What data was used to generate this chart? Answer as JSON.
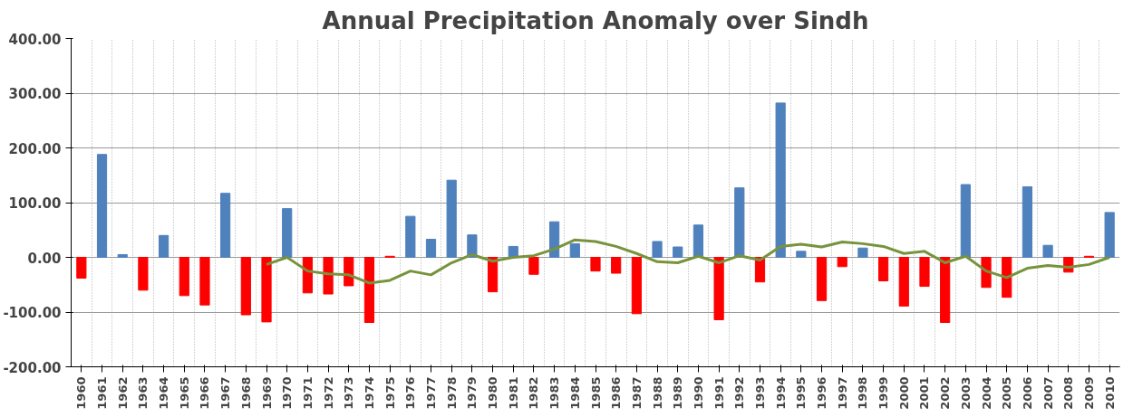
{
  "chart_data": {
    "type": "bar",
    "title": "Annual Precipitation Anomaly over Sindh",
    "categories": [
      "1960",
      "1961",
      "1962",
      "1963",
      "1964",
      "1965",
      "1966",
      "1967",
      "1968",
      "1969",
      "1970",
      "1971",
      "1972",
      "1973",
      "1974",
      "1975",
      "1976",
      "1977",
      "1978",
      "1979",
      "1980",
      "1981",
      "1982",
      "1983",
      "1984",
      "1985",
      "1986",
      "1987",
      "1988",
      "1989",
      "1990",
      "1991",
      "1992",
      "1993",
      "1994",
      "1995",
      "1996",
      "1997",
      "1998",
      "1999",
      "2000",
      "2001",
      "2002",
      "2003",
      "2004",
      "2005",
      "2006",
      "2007",
      "2008",
      "2009",
      "2010"
    ],
    "series": [
      {
        "colors": [
          "#ff0000",
          "#4f81bd",
          "#4f81bd",
          "#ff0000",
          "#4f81bd",
          "#ff0000",
          "#ff0000",
          "#4f81bd",
          "#ff0000",
          "#ff0000",
          "#4f81bd",
          "#ff0000",
          "#ff0000",
          "#ff0000",
          "#ff0000",
          "#ff0000",
          "#4f81bd",
          "#4f81bd",
          "#4f81bd",
          "#4f81bd",
          "#ff0000",
          "#4f81bd",
          "#ff0000",
          "#4f81bd",
          "#4f81bd",
          "#ff0000",
          "#ff0000",
          "#ff0000",
          "#4f81bd",
          "#4f81bd",
          "#4f81bd",
          "#ff0000",
          "#4f81bd",
          "#ff0000",
          "#4f81bd",
          "#4f81bd",
          "#ff0000",
          "#ff0000",
          "#4f81bd",
          "#ff0000",
          "#ff0000",
          "#ff0000",
          "#ff0000",
          "#4f81bd",
          "#ff0000",
          "#ff0000",
          "#4f81bd",
          "#4f81bd",
          "#ff0000",
          "#ff0000",
          "#4f81bd"
        ],
        "values": [
          -38,
          188,
          5,
          -60,
          40,
          -70,
          -87,
          117,
          -105,
          -118,
          89,
          -65,
          -67,
          -52,
          -119,
          2,
          75,
          33,
          141,
          41,
          -63,
          20,
          -31,
          65,
          25,
          -25,
          -29,
          -103,
          29,
          19,
          59,
          -114,
          127,
          -45,
          282,
          11,
          -79,
          -17,
          17,
          -43,
          -89,
          -53,
          -119,
          133,
          -55,
          -73,
          129,
          22,
          -27,
          2,
          82
        ]
      },
      {
        "type": "line",
        "color": "#77933c",
        "values": [
          null,
          null,
          null,
          null,
          null,
          null,
          null,
          null,
          null,
          -13,
          0,
          -25,
          -30,
          -32,
          -47,
          -42,
          -25,
          -32,
          -10,
          5,
          -7,
          0,
          3,
          15,
          32,
          29,
          20,
          7,
          -8,
          -10,
          2,
          -10,
          3,
          -5,
          20,
          24,
          19,
          28,
          25,
          20,
          7,
          11,
          -10,
          2,
          -25,
          -37,
          -20,
          -15,
          -18,
          -13,
          0
        ]
      }
    ],
    "ylim": [
      -200,
      400
    ],
    "yticks": [
      {
        "value": -200,
        "label": "-200.00"
      },
      {
        "value": -100,
        "label": "-100.00"
      },
      {
        "value": 0,
        "label": "0.00"
      },
      {
        "value": 100,
        "label": "100.00"
      },
      {
        "value": 200,
        "label": "200.00"
      },
      {
        "value": 300,
        "label": "300.00"
      },
      {
        "value": 400,
        "label": "400.00"
      }
    ],
    "grid": true
  }
}
